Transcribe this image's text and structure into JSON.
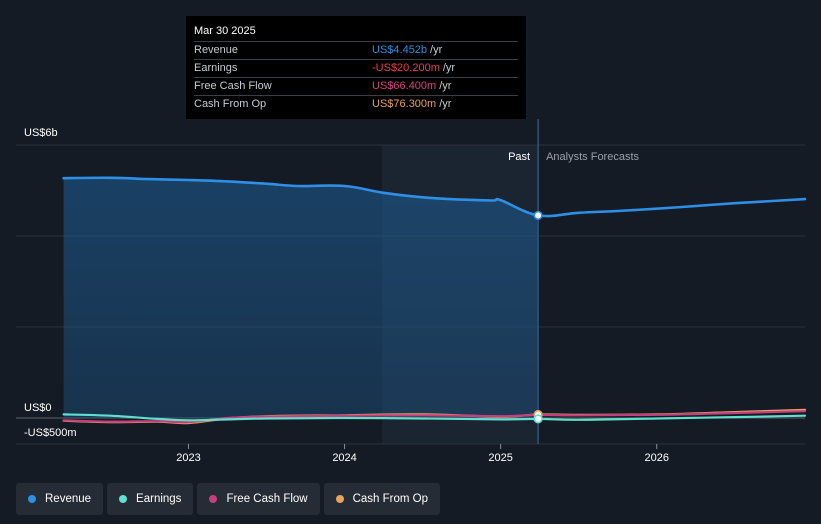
{
  "tooltip": {
    "date": "Mar 30 2025",
    "rows": [
      {
        "label": "Revenue",
        "value": "US$4.452b",
        "unit": "/yr",
        "color": "#2f8fe0"
      },
      {
        "label": "Earnings",
        "value": "-US$20.200m",
        "unit": "/yr",
        "color": "#e8414f"
      },
      {
        "label": "Free Cash Flow",
        "value": "US$66.400m",
        "unit": "/yr",
        "color": "#d4447f"
      },
      {
        "label": "Cash From Op",
        "value": "US$76.300m",
        "unit": "/yr",
        "color": "#e8a25f"
      }
    ]
  },
  "legend": [
    {
      "label": "Revenue",
      "color": "#2d8fe6"
    },
    {
      "label": "Earnings",
      "color": "#5fe0cf"
    },
    {
      "label": "Free Cash Flow",
      "color": "#c43f7e"
    },
    {
      "label": "Cash From Op",
      "color": "#e8a25f"
    }
  ],
  "chart_data": {
    "type": "line",
    "x_unit": "year",
    "xlim": [
      2022.1,
      2026.95
    ],
    "ylim": [
      -500,
      6000
    ],
    "y_tick_labels": [
      {
        "value": 6000,
        "label": "US$6b"
      },
      {
        "value": 0,
        "label": "US$0"
      },
      {
        "value": -500,
        "label": "-US$500m"
      }
    ],
    "x_ticks": [
      {
        "value": 2023,
        "label": "2023"
      },
      {
        "value": 2024,
        "label": "2024"
      },
      {
        "value": 2025,
        "label": "2025"
      },
      {
        "value": 2026,
        "label": "2026"
      }
    ],
    "past_label": "Past",
    "forecast_label": "Analysts Forecasts",
    "highlight_start": 2024.24,
    "divider": 2025.24,
    "series": [
      {
        "name": "Revenue",
        "color": "#2d8fe6",
        "points": [
          [
            2022.2,
            5270
          ],
          [
            2022.5,
            5280
          ],
          [
            2022.75,
            5250
          ],
          [
            2023.0,
            5230
          ],
          [
            2023.25,
            5200
          ],
          [
            2023.5,
            5150
          ],
          [
            2023.7,
            5100
          ],
          [
            2024.0,
            5100
          ],
          [
            2024.25,
            4950
          ],
          [
            2024.5,
            4850
          ],
          [
            2024.75,
            4800
          ],
          [
            2024.95,
            4780
          ],
          [
            2025.0,
            4790
          ],
          [
            2025.24,
            4452
          ],
          [
            2025.5,
            4510
          ],
          [
            2025.75,
            4550
          ],
          [
            2026.0,
            4600
          ],
          [
            2026.25,
            4660
          ],
          [
            2026.5,
            4720
          ],
          [
            2026.95,
            4810
          ]
        ]
      },
      {
        "name": "Earnings",
        "color": "#5fe0cf",
        "points": [
          [
            2022.2,
            80
          ],
          [
            2022.5,
            50
          ],
          [
            2022.8,
            -20
          ],
          [
            2023.0,
            -50
          ],
          [
            2023.25,
            -30
          ],
          [
            2023.5,
            -10
          ],
          [
            2024.0,
            0
          ],
          [
            2024.5,
            -10
          ],
          [
            2025.0,
            -30
          ],
          [
            2025.24,
            -20.2
          ],
          [
            2025.5,
            -40
          ],
          [
            2026.0,
            -10
          ],
          [
            2026.5,
            20
          ],
          [
            2026.95,
            50
          ]
        ]
      },
      {
        "name": "Free Cash Flow",
        "color": "#c43f7e",
        "points": [
          [
            2022.2,
            -50
          ],
          [
            2022.5,
            -80
          ],
          [
            2022.8,
            -70
          ],
          [
            2023.0,
            -90
          ],
          [
            2023.25,
            0
          ],
          [
            2023.5,
            30
          ],
          [
            2024.0,
            50
          ],
          [
            2024.5,
            60
          ],
          [
            2025.0,
            40
          ],
          [
            2025.24,
            66.4
          ],
          [
            2025.5,
            60
          ],
          [
            2026.0,
            70
          ],
          [
            2026.5,
            110
          ],
          [
            2026.95,
            150
          ]
        ]
      },
      {
        "name": "Cash From Op",
        "color": "#e8a25f",
        "points": [
          [
            2022.2,
            -60
          ],
          [
            2022.5,
            -90
          ],
          [
            2022.8,
            -80
          ],
          [
            2023.0,
            -110
          ],
          [
            2023.25,
            -10
          ],
          [
            2023.5,
            40
          ],
          [
            2024.0,
            60
          ],
          [
            2024.5,
            80
          ],
          [
            2025.0,
            30
          ],
          [
            2025.24,
            76.3
          ],
          [
            2025.5,
            70
          ],
          [
            2026.0,
            80
          ],
          [
            2026.5,
            130
          ],
          [
            2026.95,
            180
          ]
        ]
      }
    ]
  }
}
